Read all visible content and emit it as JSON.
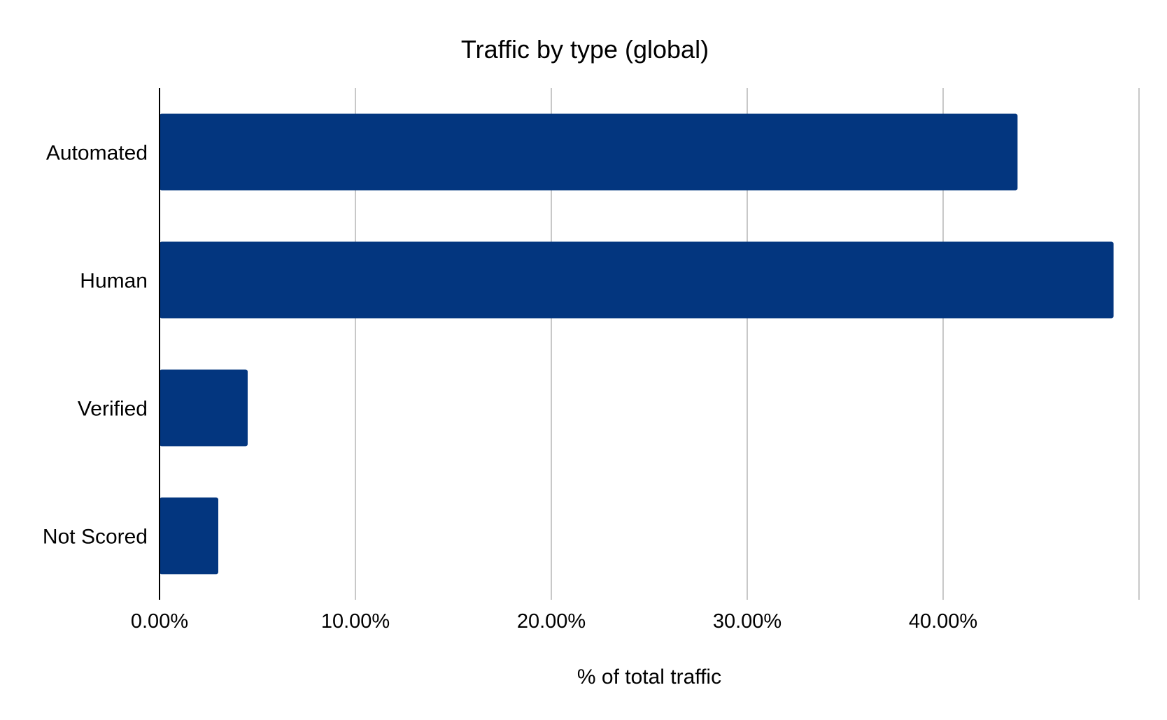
{
  "chart_data": {
    "type": "bar",
    "orientation": "horizontal",
    "title": "Traffic by type (global)",
    "xlabel": "% of total traffic",
    "ylabel": "",
    "categories": [
      "Automated",
      "Human",
      "Verified",
      "Not Scored"
    ],
    "values": [
      43.8,
      48.7,
      4.5,
      3.0
    ],
    "unit": "%",
    "xlim": [
      0,
      50
    ],
    "xticks": [
      0,
      10,
      20,
      30,
      40
    ],
    "xtick_labels": [
      "0.00%",
      "10.00%",
      "20.00%",
      "30.00%",
      "40.00%"
    ],
    "grid": "vertical",
    "legend": "none",
    "bar_color": "#03367F"
  }
}
